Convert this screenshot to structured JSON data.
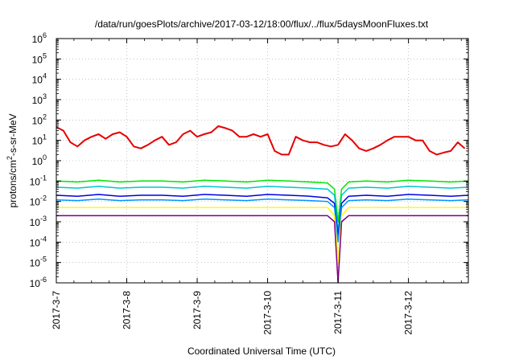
{
  "chart_data": {
    "type": "line",
    "title": "/data/run/goesPlots/archive/2017-03-12/18:00/flux/../flux/5daysMoonFluxes.txt",
    "xlabel": "Coordinated Universal Time (UTC)",
    "ylabel": "protons/cm²-s-sr-MeV",
    "ylabel_parts": {
      "before": "protons/cm",
      "sup": "2",
      "after": "-s-sr-MeV"
    },
    "yscale": "log",
    "ylim": [
      1e-06,
      1000000.0
    ],
    "xlim": [
      0,
      5.85
    ],
    "x_unit": "days since 2017-3-7 00:00",
    "grid": true,
    "legend": "none",
    "x_ticks": [
      {
        "value": 0,
        "label": "2017-3-7"
      },
      {
        "value": 1,
        "label": "2017-3-8"
      },
      {
        "value": 2,
        "label": "2017-3-9"
      },
      {
        "value": 3,
        "label": "2017-3-10"
      },
      {
        "value": 4,
        "label": "2017-3-11"
      },
      {
        "value": 5,
        "label": "2017-3-12"
      }
    ],
    "y_ticks": [
      {
        "value": 1e-06,
        "base": "10",
        "exp": "-6"
      },
      {
        "value": 1e-05,
        "base": "10",
        "exp": "-5"
      },
      {
        "value": 0.0001,
        "base": "10",
        "exp": "-4"
      },
      {
        "value": 0.001,
        "base": "10",
        "exp": "-3"
      },
      {
        "value": 0.01,
        "base": "10",
        "exp": "-2"
      },
      {
        "value": 0.1,
        "base": "10",
        "exp": "-1"
      },
      {
        "value": 1,
        "base": "10",
        "exp": "0"
      },
      {
        "value": 10,
        "base": "10",
        "exp": "1"
      },
      {
        "value": 100,
        "base": "10",
        "exp": "2"
      },
      {
        "value": 1000,
        "base": "10",
        "exp": "3"
      },
      {
        "value": 10000,
        "base": "10",
        "exp": "4"
      },
      {
        "value": 100000,
        "base": "10",
        "exp": "5"
      },
      {
        "value": 1000000,
        "base": "10",
        "exp": "6"
      }
    ],
    "series": [
      {
        "color": "#e60000",
        "width": 2,
        "x": [
          0,
          0.1,
          0.2,
          0.3,
          0.4,
          0.5,
          0.6,
          0.7,
          0.8,
          0.9,
          1.0,
          1.1,
          1.2,
          1.3,
          1.4,
          1.5,
          1.6,
          1.7,
          1.8,
          1.9,
          2.0,
          2.1,
          2.2,
          2.3,
          2.4,
          2.5,
          2.6,
          2.7,
          2.8,
          2.9,
          3.0,
          3.1,
          3.2,
          3.3,
          3.4,
          3.5,
          3.6,
          3.7,
          3.8,
          3.9,
          4.0,
          4.1,
          4.2,
          4.3,
          4.4,
          4.5,
          4.6,
          4.7,
          4.8,
          4.9,
          5.0,
          5.1,
          5.2,
          5.3,
          5.4,
          5.5,
          5.6,
          5.7,
          5.8
        ],
        "y": [
          45,
          30,
          8,
          5,
          10,
          15,
          20,
          12,
          20,
          25,
          15,
          5,
          4,
          6,
          10,
          15,
          6,
          8,
          20,
          30,
          15,
          20,
          25,
          50,
          40,
          30,
          15,
          15,
          20,
          15,
          20,
          3,
          2,
          2,
          15,
          10,
          8,
          8,
          6,
          5,
          6,
          20,
          10,
          4,
          3,
          4,
          6,
          10,
          15,
          15,
          15,
          10,
          10,
          3,
          2,
          2.5,
          3,
          8,
          4
        ]
      },
      {
        "color": "#00e600",
        "width": 1.5,
        "x": [
          0,
          0.3,
          0.6,
          0.9,
          1.2,
          1.5,
          1.8,
          2.1,
          2.4,
          2.7,
          3.0,
          3.3,
          3.6,
          3.85,
          3.95,
          4.0,
          4.05,
          4.15,
          4.4,
          4.7,
          5.0,
          5.3,
          5.6,
          5.85
        ],
        "y": [
          0.1,
          0.09,
          0.11,
          0.09,
          0.1,
          0.1,
          0.09,
          0.11,
          0.1,
          0.09,
          0.11,
          0.1,
          0.09,
          0.08,
          0.04,
          0.001,
          0.04,
          0.09,
          0.1,
          0.09,
          0.11,
          0.1,
          0.09,
          0.1
        ]
      },
      {
        "color": "#00c8c8",
        "width": 1.5,
        "x": [
          0,
          0.3,
          0.6,
          0.9,
          1.2,
          1.5,
          1.8,
          2.1,
          2.4,
          2.7,
          3.0,
          3.3,
          3.6,
          3.85,
          3.95,
          4.0,
          4.05,
          4.15,
          4.4,
          4.7,
          5.0,
          5.3,
          5.6,
          5.85
        ],
        "y": [
          0.05,
          0.045,
          0.055,
          0.045,
          0.05,
          0.05,
          0.045,
          0.055,
          0.05,
          0.045,
          0.055,
          0.05,
          0.045,
          0.04,
          0.02,
          0.0003,
          0.02,
          0.045,
          0.05,
          0.045,
          0.055,
          0.05,
          0.045,
          0.05
        ]
      },
      {
        "color": "#0000e6",
        "width": 1.5,
        "x": [
          0,
          0.3,
          0.6,
          0.9,
          1.2,
          1.5,
          1.8,
          2.1,
          2.4,
          2.7,
          3.0,
          3.3,
          3.6,
          3.85,
          3.95,
          4.0,
          4.05,
          4.15,
          4.4,
          4.7,
          5.0,
          5.3,
          5.6,
          5.85
        ],
        "y": [
          0.02,
          0.018,
          0.022,
          0.018,
          0.02,
          0.02,
          0.018,
          0.022,
          0.02,
          0.018,
          0.022,
          0.02,
          0.018,
          0.015,
          0.008,
          0.0002,
          0.008,
          0.018,
          0.02,
          0.018,
          0.022,
          0.02,
          0.018,
          0.02
        ]
      },
      {
        "color": "#0096ff",
        "width": 1.5,
        "x": [
          0,
          0.3,
          0.6,
          0.9,
          1.2,
          1.5,
          1.8,
          2.1,
          2.4,
          2.7,
          3.0,
          3.3,
          3.6,
          3.85,
          3.95,
          4.0,
          4.05,
          4.15,
          4.4,
          4.7,
          5.0,
          5.3,
          5.6,
          5.85
        ],
        "y": [
          0.012,
          0.011,
          0.013,
          0.011,
          0.012,
          0.012,
          0.011,
          0.013,
          0.012,
          0.011,
          0.013,
          0.012,
          0.011,
          0.01,
          0.005,
          0.0001,
          0.005,
          0.011,
          0.012,
          0.011,
          0.013,
          0.012,
          0.011,
          0.012
        ]
      },
      {
        "color": "#ffff00",
        "width": 1.5,
        "x": [
          0,
          0.3,
          0.6,
          0.9,
          1.2,
          1.5,
          1.8,
          2.1,
          2.4,
          2.7,
          3.0,
          3.3,
          3.6,
          3.85,
          3.95,
          4.0,
          4.05,
          4.15,
          4.4,
          4.7,
          5.0,
          5.3,
          5.6,
          5.85
        ],
        "y": [
          0.005,
          0.005,
          0.005,
          0.005,
          0.005,
          0.005,
          0.005,
          0.005,
          0.005,
          0.005,
          0.005,
          0.005,
          0.005,
          0.005,
          0.002,
          1e-05,
          0.002,
          0.005,
          0.005,
          0.005,
          0.005,
          0.005,
          0.005,
          0.005
        ]
      },
      {
        "color": "#800080",
        "width": 1.5,
        "x": [
          0,
          0.3,
          0.6,
          0.9,
          1.2,
          1.5,
          1.8,
          2.1,
          2.4,
          2.7,
          3.0,
          3.3,
          3.6,
          3.85,
          3.95,
          4.0,
          4.05,
          4.15,
          4.4,
          4.7,
          5.0,
          5.3,
          5.6,
          5.85
        ],
        "y": [
          0.002,
          0.002,
          0.002,
          0.002,
          0.002,
          0.002,
          0.002,
          0.002,
          0.002,
          0.002,
          0.002,
          0.002,
          0.002,
          0.002,
          0.001,
          1e-06,
          0.001,
          0.002,
          0.002,
          0.002,
          0.002,
          0.002,
          0.002,
          0.002
        ]
      }
    ]
  }
}
